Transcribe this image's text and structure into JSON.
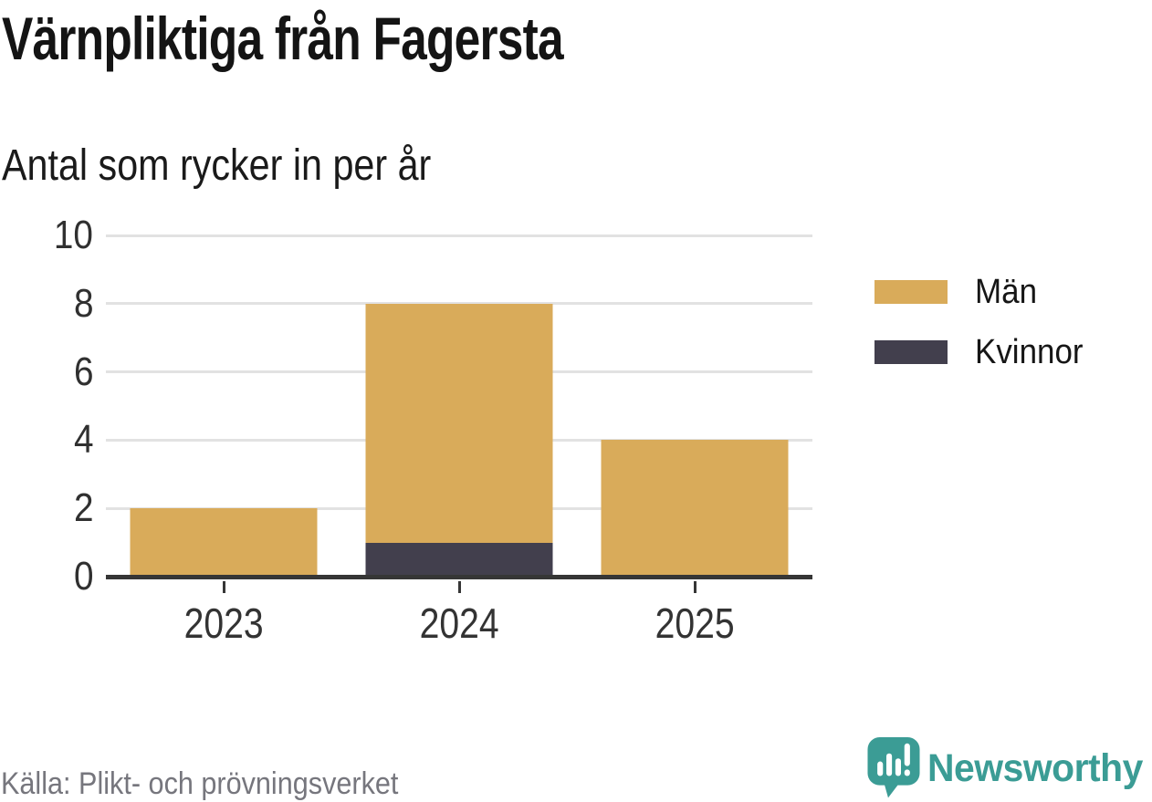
{
  "header": {
    "title": "Värnpliktiga från Fagersta",
    "subtitle": "Antal som rycker in per år"
  },
  "chart_data": {
    "type": "bar",
    "stacked": true,
    "title": "Värnpliktiga från Fagersta",
    "subtitle": "Antal som rycker in per år",
    "categories": [
      "2023",
      "2024",
      "2025"
    ],
    "series": [
      {
        "name": "Män",
        "color": "#d9ab5a",
        "values": [
          2,
          7,
          4
        ]
      },
      {
        "name": "Kvinnor",
        "color": "#423f4d",
        "values": [
          0,
          1,
          0
        ]
      }
    ],
    "stack_bottom_to_top": [
      "Kvinnor",
      "Män"
    ],
    "totals": [
      2,
      8,
      4
    ],
    "xlabel": "",
    "ylabel": "",
    "ylim": [
      0,
      10
    ],
    "yticks": [
      0,
      2,
      4,
      6,
      8,
      10
    ],
    "grid": "horizontal-only",
    "legend_position": "right"
  },
  "footer": {
    "source": "Källa: Plikt- och prövningsverket",
    "brand": "Newsworthy"
  },
  "colors": {
    "men": "#d9ab5a",
    "women": "#423f4d",
    "teal": "#3b9c95",
    "grid": "#e2e2e2",
    "axis": "#363636",
    "muted_text": "#76767d"
  }
}
